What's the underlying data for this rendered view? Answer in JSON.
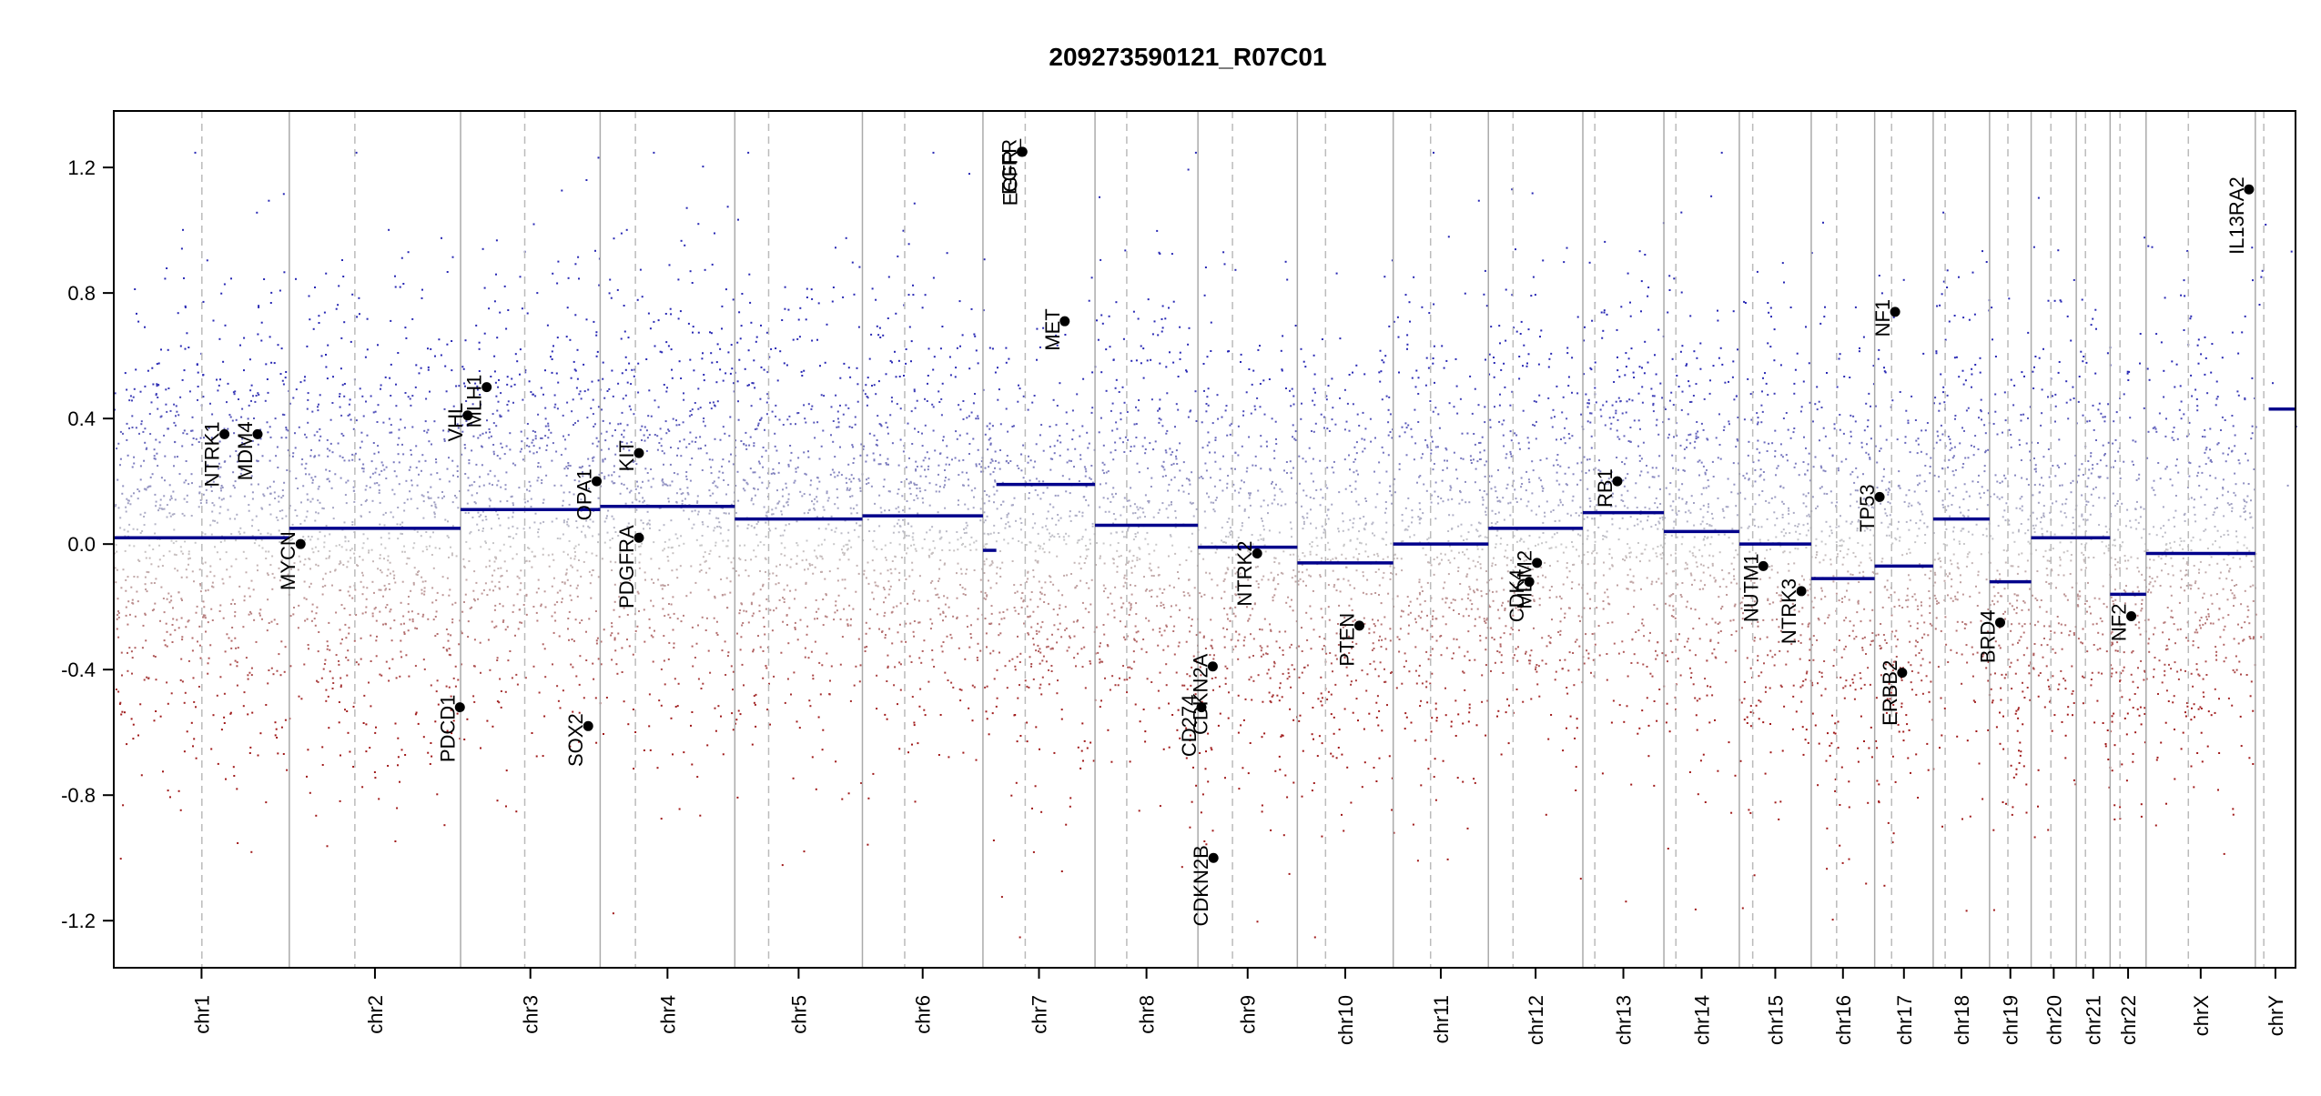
{
  "chart_data": {
    "type": "scatter",
    "title": "209273590121_R07C01",
    "xlabel": "",
    "ylabel": "",
    "ylim": [
      -1.25,
      1.25
    ],
    "yticks": [
      "-1.2",
      "-0.8",
      "-0.4",
      "0.0",
      "0.4",
      "0.8",
      "1.2"
    ],
    "grid": false,
    "colors": {
      "gain": "#2b2bb8",
      "loss": "#a01818",
      "neutral": "#bbbbbb",
      "segment": "#00008b",
      "chrom_line": "#aaaaaa",
      "centromere_line": "#bbbbbb"
    },
    "chromosomes": [
      {
        "name": "chr1",
        "length": 249,
        "centromere": 125
      },
      {
        "name": "chr2",
        "length": 243,
        "centromere": 93
      },
      {
        "name": "chr3",
        "length": 198,
        "centromere": 91
      },
      {
        "name": "chr4",
        "length": 191,
        "centromere": 50
      },
      {
        "name": "chr5",
        "length": 181,
        "centromere": 48
      },
      {
        "name": "chr6",
        "length": 171,
        "centromere": 60
      },
      {
        "name": "chr7",
        "length": 159,
        "centromere": 60
      },
      {
        "name": "chr8",
        "length": 146,
        "centromere": 45
      },
      {
        "name": "chr9",
        "length": 141,
        "centromere": 49
      },
      {
        "name": "chr10",
        "length": 136,
        "centromere": 40
      },
      {
        "name": "chr11",
        "length": 135,
        "centromere": 53
      },
      {
        "name": "chr12",
        "length": 134,
        "centromere": 35
      },
      {
        "name": "chr13",
        "length": 115,
        "centromere": 17
      },
      {
        "name": "chr14",
        "length": 107,
        "centromere": 17
      },
      {
        "name": "chr15",
        "length": 102,
        "centromere": 19
      },
      {
        "name": "chr16",
        "length": 90,
        "centromere": 36
      },
      {
        "name": "chr17",
        "length": 83,
        "centromere": 24
      },
      {
        "name": "chr18",
        "length": 80,
        "centromere": 17
      },
      {
        "name": "chr19",
        "length": 59,
        "centromere": 26
      },
      {
        "name": "chr20",
        "length": 64,
        "centromere": 28
      },
      {
        "name": "chr21",
        "length": 48,
        "centromere": 13
      },
      {
        "name": "chr22",
        "length": 51,
        "centromere": 14
      },
      {
        "name": "chrX",
        "length": 155,
        "centromere": 60
      },
      {
        "name": "chrY",
        "length": 57,
        "centromere": 12
      }
    ],
    "segments": [
      {
        "chr": "chr1",
        "value": 0.02
      },
      {
        "chr": "chr2",
        "value": 0.05
      },
      {
        "chr": "chr3",
        "value": 0.11
      },
      {
        "chr": "chr4",
        "value": 0.12
      },
      {
        "chr": "chr5",
        "value": 0.08
      },
      {
        "chr": "chr6",
        "value": 0.09
      },
      {
        "chr": "chr7",
        "start": 0,
        "end": 19,
        "value": -0.02
      },
      {
        "chr": "chr7",
        "start": 19,
        "end": 159,
        "value": 0.19
      },
      {
        "chr": "chr8",
        "value": 0.06
      },
      {
        "chr": "chr9",
        "value": -0.01
      },
      {
        "chr": "chr10",
        "value": -0.06
      },
      {
        "chr": "chr11",
        "value": 0.0
      },
      {
        "chr": "chr12",
        "value": 0.05
      },
      {
        "chr": "chr13",
        "value": 0.1
      },
      {
        "chr": "chr14",
        "value": 0.04
      },
      {
        "chr": "chr15",
        "value": 0.0
      },
      {
        "chr": "chr16",
        "value": -0.11
      },
      {
        "chr": "chr17",
        "value": -0.07
      },
      {
        "chr": "chr18",
        "value": 0.08
      },
      {
        "chr": "chr19",
        "value": -0.12
      },
      {
        "chr": "chr20",
        "value": 0.02
      },
      {
        "chr": "chr21",
        "value": 0.02
      },
      {
        "chr": "chr22",
        "start": 0,
        "end": 14,
        "value": -0.16
      },
      {
        "chr": "chr22",
        "start": 14,
        "end": 51,
        "value": -0.16
      },
      {
        "chr": "chrX",
        "value": -0.03
      },
      {
        "chr": "chrY",
        "start": 19,
        "end": 57,
        "value": 0.43
      }
    ],
    "genes": [
      {
        "name": "NTRK1",
        "chr": "chr1",
        "pos": 157,
        "value": 0.35
      },
      {
        "name": "MDM4",
        "chr": "chr1",
        "pos": 204,
        "value": 0.35
      },
      {
        "name": "MYCN",
        "chr": "chr2",
        "pos": 16,
        "value": 0.0
      },
      {
        "name": "PDCD1",
        "chr": "chr2",
        "pos": 242,
        "value": -0.52
      },
      {
        "name": "VHL",
        "chr": "chr3",
        "pos": 10,
        "value": 0.41
      },
      {
        "name": "MLH1",
        "chr": "chr3",
        "pos": 37,
        "value": 0.5
      },
      {
        "name": "OPA1",
        "chr": "chr3",
        "pos": 193,
        "value": 0.2
      },
      {
        "name": "SOX2",
        "chr": "chr3",
        "pos": 181,
        "value": -0.58
      },
      {
        "name": "PDGFRA",
        "chr": "chr4",
        "pos": 55,
        "value": 0.02
      },
      {
        "name": "KIT",
        "chr": "chr4",
        "pos": 55,
        "value": 0.29
      },
      {
        "name": "EGFR",
        "chr": "chr7",
        "pos": 55,
        "value": 1.25
      },
      {
        "name": "EGFR_",
        "chr": "chr7",
        "pos": 56,
        "value": 1.25
      },
      {
        "name": "MET",
        "chr": "chr7",
        "pos": 116,
        "value": 0.71
      },
      {
        "name": "CDKN2A",
        "chr": "chr9",
        "pos": 21,
        "value": -0.39
      },
      {
        "name": "CDKN2B",
        "chr": "chr9",
        "pos": 22,
        "value": -1.0
      },
      {
        "name": "CD274",
        "chr": "chr9",
        "pos": 5,
        "value": -0.52
      },
      {
        "name": "NTRK2",
        "chr": "chr9",
        "pos": 84,
        "value": -0.03
      },
      {
        "name": "PTEN",
        "chr": "chr10",
        "pos": 88,
        "value": -0.26
      },
      {
        "name": "CDK4",
        "chr": "chr12",
        "pos": 58,
        "value": -0.12
      },
      {
        "name": "MDM2",
        "chr": "chr12",
        "pos": 69,
        "value": -0.06
      },
      {
        "name": "RB1",
        "chr": "chr13",
        "pos": 49,
        "value": 0.2
      },
      {
        "name": "NUTM1",
        "chr": "chr15",
        "pos": 34,
        "value": -0.07
      },
      {
        "name": "NTRK3",
        "chr": "chr15",
        "pos": 88,
        "value": -0.15
      },
      {
        "name": "TP53",
        "chr": "chr17",
        "pos": 7,
        "value": 0.15
      },
      {
        "name": "NF1",
        "chr": "chr17",
        "pos": 29,
        "value": 0.74
      },
      {
        "name": "ERBB2",
        "chr": "chr17",
        "pos": 39,
        "value": -0.41
      },
      {
        "name": "BRD4",
        "chr": "chr19",
        "pos": 15,
        "value": -0.25
      },
      {
        "name": "NF2",
        "chr": "chr22",
        "pos": 30,
        "value": -0.23
      },
      {
        "name": "IL13RA2",
        "chr": "chrX",
        "pos": 146,
        "value": 1.13
      }
    ],
    "probe_noise": {
      "points_per_unit": 3.2,
      "seed": 20927359
    }
  }
}
